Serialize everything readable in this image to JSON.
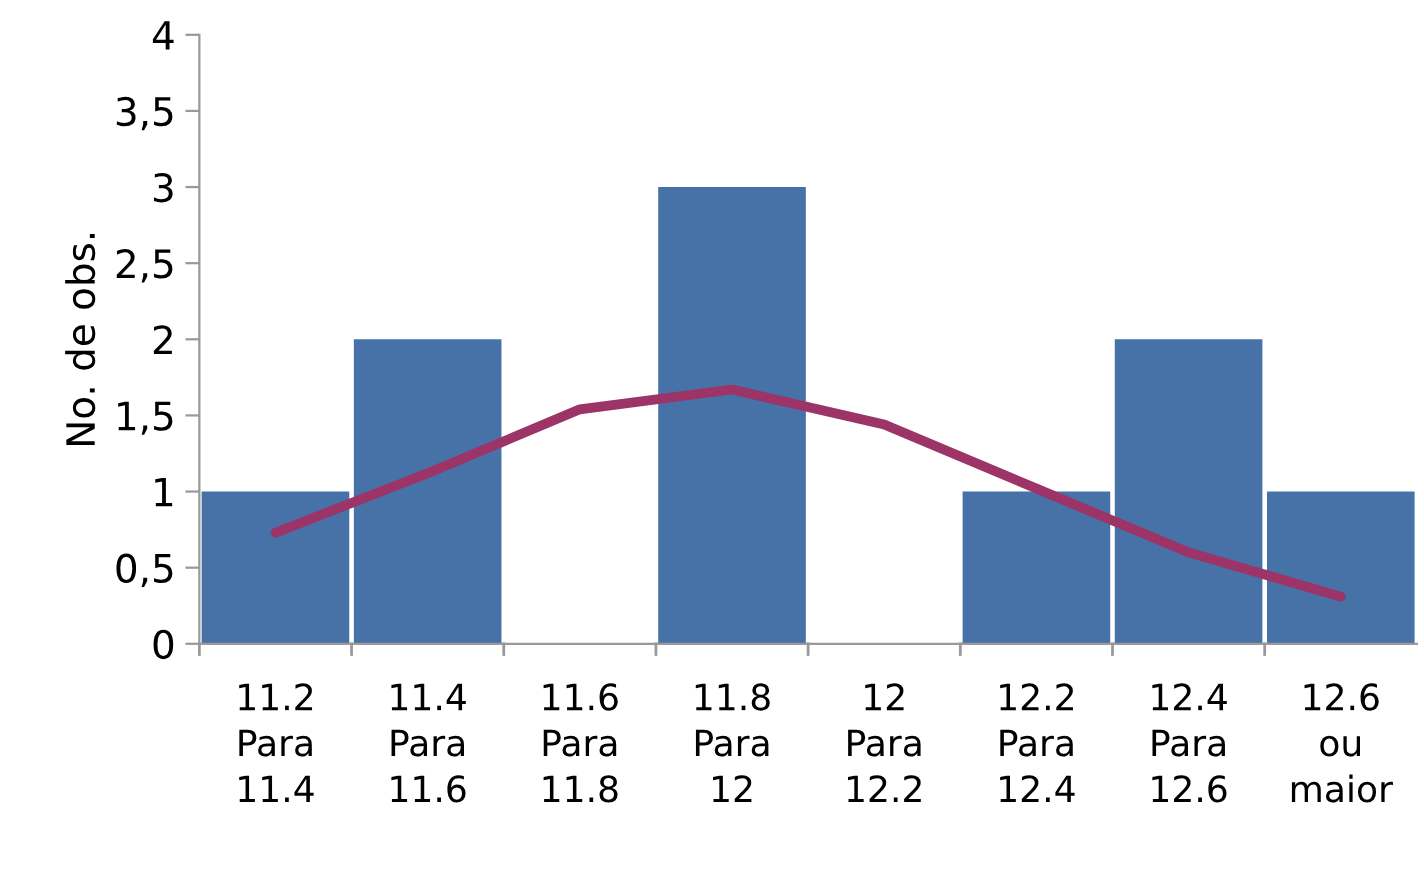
{
  "chart_data": {
    "type": "bar",
    "ylabel": "No. de obs.",
    "categories": [
      "11.2\nPara\n11.4",
      "11.4\nPara\n11.6",
      "11.6\nPara\n11.8",
      "11.8\nPara\n12",
      "12\nPara\n12.2",
      "12.2\nPara\n12.4",
      "12.4\nPara\n12.6",
      "12.6\nou\nmaior"
    ],
    "series": [
      {
        "color": "#4672a8",
        "values": [
          1,
          2,
          0,
          3,
          0,
          1,
          2,
          1
        ]
      },
      {
        "type": "line",
        "color": "#9c3468",
        "values": [
          0.73,
          1.12,
          1.54,
          1.67,
          1.44,
          1.02,
          0.6,
          0.31
        ]
      }
    ],
    "ylim": [
      0,
      4
    ],
    "yticks": [
      0,
      {
        "value": 0.5,
        "label": "0,5"
      },
      1,
      {
        "value": 1.5,
        "label": "1,5"
      },
      2,
      {
        "value": 2.5,
        "label": "2,5"
      },
      3,
      {
        "value": 3.5,
        "label": "3,5"
      },
      4
    ],
    "grid": false,
    "marker": "none",
    "line_style": "solid"
  }
}
